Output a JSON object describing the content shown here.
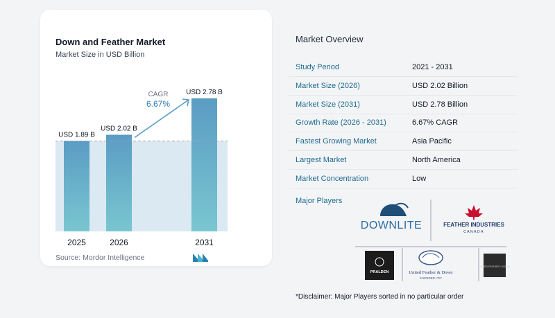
{
  "chart_data": {
    "type": "bar",
    "title": "Down and Feather Market",
    "subtitle": "Market Size in USD Billion",
    "categories": [
      "2025",
      "2026",
      "2031"
    ],
    "values": [
      1.89,
      2.02,
      2.78
    ],
    "data_labels": [
      "USD 1.89 B",
      "USD 2.02 B",
      "USD 2.78 B"
    ],
    "annotation": {
      "label": "CAGR",
      "value": "6.67%"
    },
    "bar_colors": [
      "#5b9cc4",
      "#5b9cc4",
      "#5b9cc4"
    ],
    "grid": false,
    "legend": "none"
  },
  "source": "Source:  Mordor Intelligence",
  "overview": {
    "title": "Market Overview",
    "rows": [
      {
        "label": "Study Period",
        "value": "2021 - 2031"
      },
      {
        "label": "Market Size (2026)",
        "value": "USD 2.02 Billion"
      },
      {
        "label": "Market Size (2031)",
        "value": "USD 2.78 Billion"
      },
      {
        "label": "Growth Rate (2026 - 2031)",
        "value": "6.67% CAGR"
      },
      {
        "label": "Fastest Growing Market",
        "value": "Asia Pacific"
      },
      {
        "label": "Largest Market",
        "value": "North America"
      },
      {
        "label": "Market Concentration",
        "value": "Low"
      }
    ]
  },
  "players": {
    "title": "Major Players",
    "logos": [
      {
        "name": "DOWNLITE",
        "icon": "downlite-logo"
      },
      {
        "name": "FEATHER INDUSTRIES",
        "sub": "CANADA",
        "icon": "feather-industries-logo"
      },
      {
        "name": "PRALDEN",
        "icon": "pralden-logo"
      },
      {
        "name": "United Feather & Down",
        "sub": "FOUNDED 1797",
        "icon": "united-feather-down-logo"
      },
      {
        "name": "ALLIED FEATHER + DOWN",
        "icon": "allied-feather-down-logo"
      }
    ]
  },
  "disclaimer": "*Disclaimer: Major Players sorted in no particular order"
}
